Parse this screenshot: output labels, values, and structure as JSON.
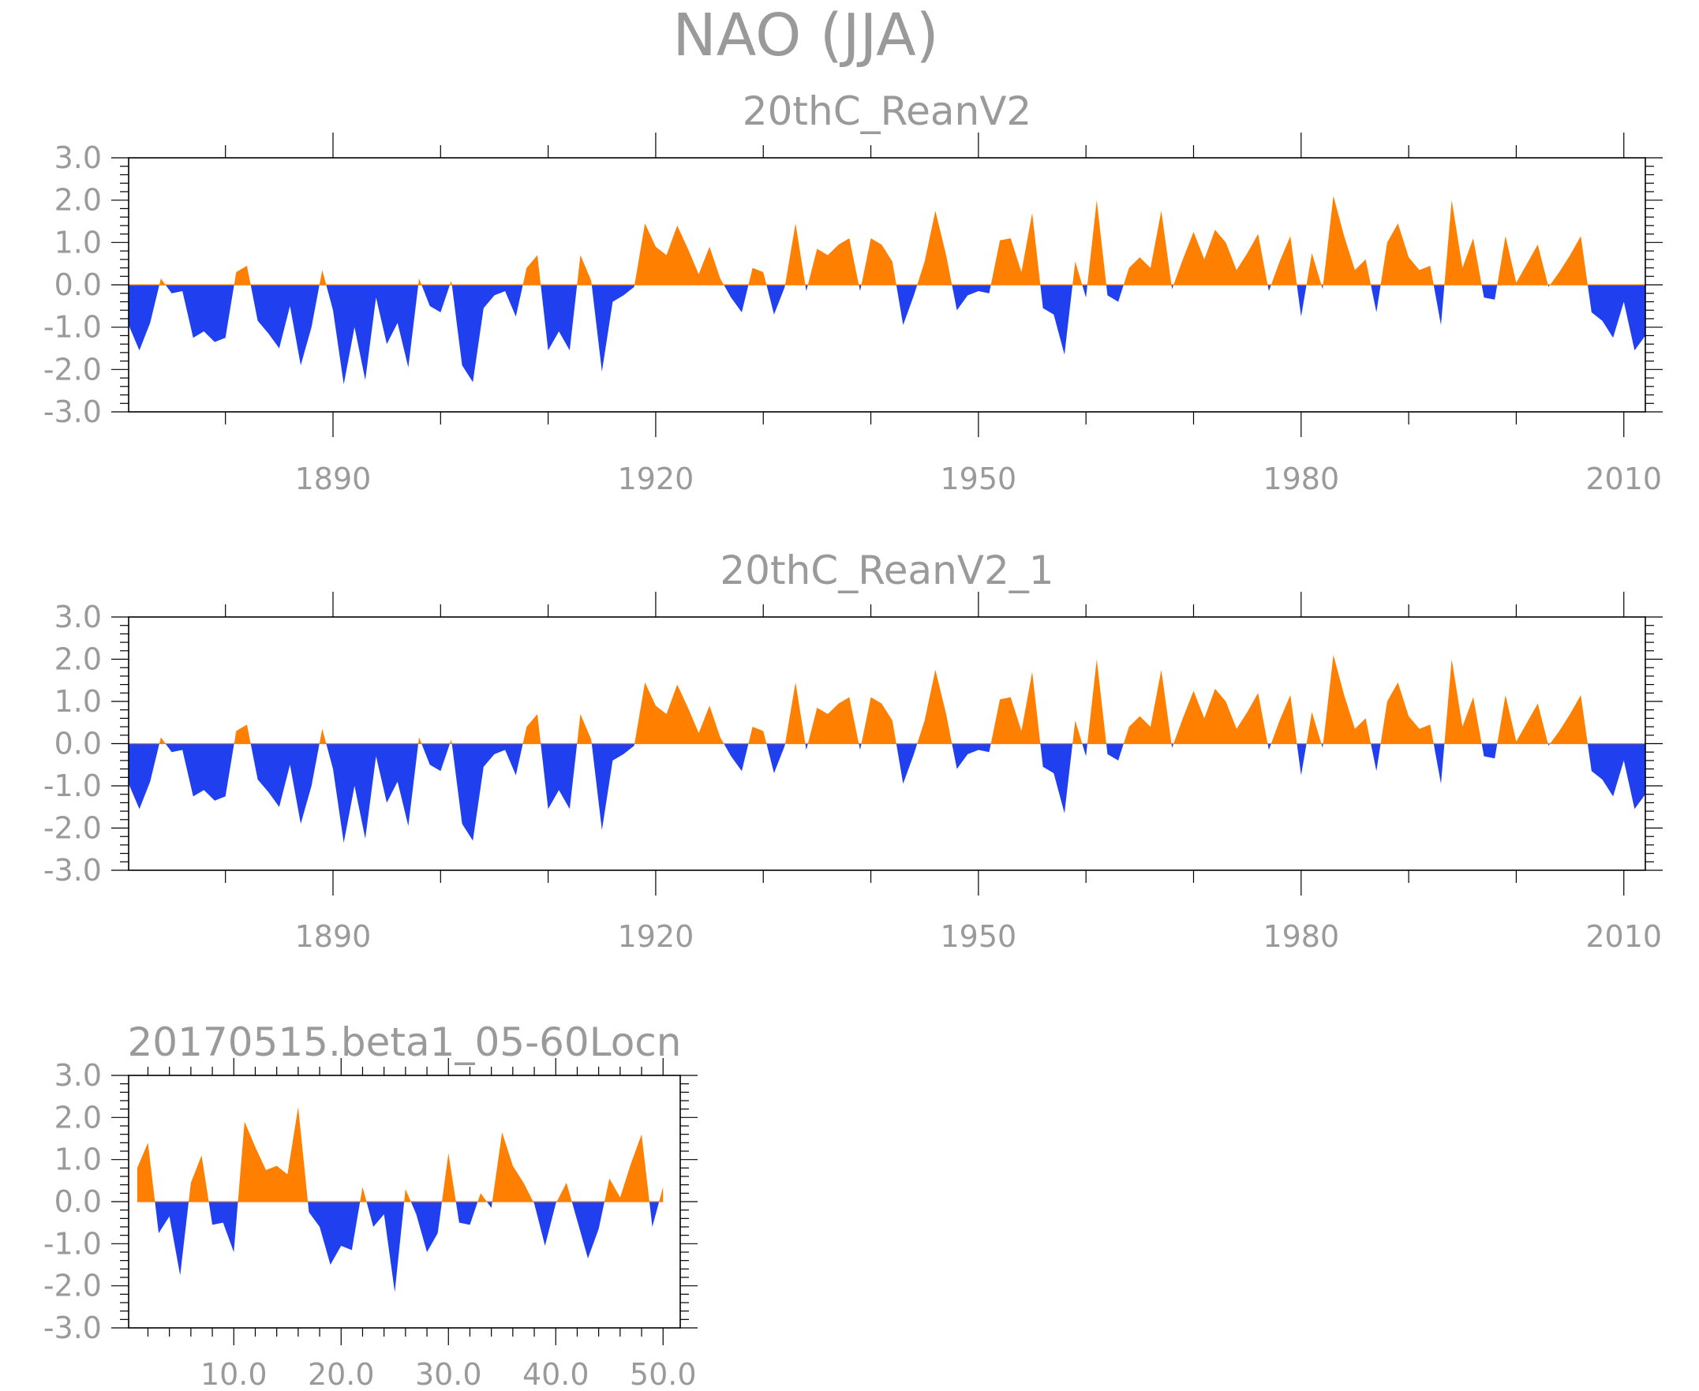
{
  "main_title": "NAO (JJA)",
  "colors": {
    "positive": "#ff8000",
    "negative": "#2040f0",
    "frame": "#000000",
    "text": "#9a9a9a"
  },
  "chart_data": [
    {
      "type": "area",
      "title": "20thC_ReanV2",
      "xlabel": "",
      "ylabel": "",
      "ylim": [
        -3,
        3
      ],
      "xlim": [
        1871,
        2012
      ],
      "yticks": [
        -3,
        -2,
        -1,
        0,
        1,
        2,
        3
      ],
      "ytick_labels": [
        "-3.0",
        "-2.0",
        "-1.0",
        "0.0",
        "1.0",
        "2.0",
        "3.0"
      ],
      "xticks": [
        1890,
        1920,
        1950,
        1980,
        2010
      ],
      "xtick_labels": [
        "1890",
        "1920",
        "1950",
        "1980",
        "2010"
      ],
      "grid": false,
      "series": [
        {
          "x_start": 1871,
          "x_end": 2012,
          "values": [
            -0.95,
            -1.55,
            -0.9,
            0.15,
            -0.2,
            -0.15,
            -1.25,
            -1.1,
            -1.35,
            -1.25,
            0.3,
            0.45,
            -0.85,
            -1.15,
            -1.5,
            -0.5,
            -1.9,
            -1.0,
            0.35,
            -0.6,
            -2.35,
            -1.0,
            -2.25,
            -0.3,
            -1.4,
            -0.9,
            -1.95,
            0.15,
            -0.5,
            -0.65,
            0.1,
            -1.9,
            -2.3,
            -0.55,
            -0.25,
            -0.15,
            -0.75,
            0.4,
            0.7,
            -1.55,
            -1.1,
            -1.55,
            0.7,
            0.1,
            -2.05,
            -0.4,
            -0.25,
            -0.05,
            1.45,
            0.9,
            0.7,
            1.4,
            0.85,
            0.25,
            0.9,
            0.15,
            -0.3,
            -0.65,
            0.4,
            0.3,
            -0.7,
            -0.05,
            1.45,
            -0.15,
            0.85,
            0.7,
            0.95,
            1.1,
            -0.15,
            1.1,
            0.95,
            0.55,
            -0.95,
            -0.25,
            0.55,
            1.75,
            0.7,
            -0.6,
            -0.25,
            -0.15,
            -0.2,
            1.05,
            1.1,
            0.3,
            1.7,
            -0.55,
            -0.7,
            -1.65,
            0.55,
            -0.3,
            2.0,
            -0.25,
            -0.4,
            0.4,
            0.65,
            0.4,
            1.75,
            -0.1,
            0.6,
            1.25,
            0.6,
            1.3,
            1.0,
            0.35,
            0.75,
            1.2,
            -0.15,
            0.55,
            1.15,
            -0.75,
            0.75,
            -0.1,
            2.1,
            1.15,
            0.35,
            0.6,
            -0.65,
            1.0,
            1.45,
            0.65,
            0.35,
            0.45,
            -0.95,
            2.0,
            0.4,
            1.1,
            -0.3,
            -0.35,
            1.15,
            0.05,
            0.5,
            0.95,
            -0.05,
            0.3,
            0.7,
            1.15,
            -0.65,
            -0.85,
            -1.25,
            -0.4,
            -1.55,
            -1.2
          ]
        }
      ]
    },
    {
      "type": "area",
      "title": "20thC_ReanV2_1",
      "xlabel": "",
      "ylabel": "",
      "ylim": [
        -3,
        3
      ],
      "xlim": [
        1871,
        2012
      ],
      "yticks": [
        -3,
        -2,
        -1,
        0,
        1,
        2,
        3
      ],
      "ytick_labels": [
        "-3.0",
        "-2.0",
        "-1.0",
        "0.0",
        "1.0",
        "2.0",
        "3.0"
      ],
      "xticks": [
        1890,
        1920,
        1950,
        1980,
        2010
      ],
      "xtick_labels": [
        "1890",
        "1920",
        "1950",
        "1980",
        "2010"
      ],
      "grid": false,
      "series": [
        {
          "x_start": 1871,
          "x_end": 2012,
          "values": [
            -0.95,
            -1.55,
            -0.9,
            0.15,
            -0.2,
            -0.15,
            -1.25,
            -1.1,
            -1.35,
            -1.25,
            0.3,
            0.45,
            -0.85,
            -1.15,
            -1.5,
            -0.5,
            -1.9,
            -1.0,
            0.35,
            -0.6,
            -2.35,
            -1.0,
            -2.25,
            -0.3,
            -1.4,
            -0.9,
            -1.95,
            0.15,
            -0.5,
            -0.65,
            0.1,
            -1.9,
            -2.3,
            -0.55,
            -0.25,
            -0.15,
            -0.75,
            0.4,
            0.7,
            -1.55,
            -1.1,
            -1.55,
            0.7,
            0.1,
            -2.05,
            -0.4,
            -0.25,
            -0.05,
            1.45,
            0.9,
            0.7,
            1.4,
            0.85,
            0.25,
            0.9,
            0.15,
            -0.3,
            -0.65,
            0.4,
            0.3,
            -0.7,
            -0.05,
            1.45,
            -0.15,
            0.85,
            0.7,
            0.95,
            1.1,
            -0.15,
            1.1,
            0.95,
            0.55,
            -0.95,
            -0.25,
            0.55,
            1.75,
            0.7,
            -0.6,
            -0.25,
            -0.15,
            -0.2,
            1.05,
            1.1,
            0.3,
            1.7,
            -0.55,
            -0.7,
            -1.65,
            0.55,
            -0.3,
            2.0,
            -0.25,
            -0.4,
            0.4,
            0.65,
            0.4,
            1.75,
            -0.1,
            0.6,
            1.25,
            0.6,
            1.3,
            1.0,
            0.35,
            0.75,
            1.2,
            -0.15,
            0.55,
            1.15,
            -0.75,
            0.75,
            -0.1,
            2.1,
            1.15,
            0.35,
            0.6,
            -0.65,
            1.0,
            1.45,
            0.65,
            0.35,
            0.45,
            -0.95,
            2.0,
            0.4,
            1.1,
            -0.3,
            -0.35,
            1.15,
            0.05,
            0.5,
            0.95,
            -0.05,
            0.3,
            0.7,
            1.15,
            -0.65,
            -0.85,
            -1.25,
            -0.4,
            -1.55,
            -1.2
          ]
        }
      ]
    },
    {
      "type": "area",
      "title": "20170515.beta1_05-60Locn",
      "xlabel": "",
      "ylabel": "",
      "ylim": [
        -3,
        3
      ],
      "xlim": [
        0.2,
        51.6
      ],
      "yticks": [
        -3,
        -2,
        -1,
        0,
        1,
        2,
        3
      ],
      "ytick_labels": [
        "-3.0",
        "-2.0",
        "-1.0",
        "0.0",
        "1.0",
        "2.0",
        "3.0"
      ],
      "xticks": [
        10,
        20,
        30,
        40,
        50
      ],
      "xtick_labels": [
        "10.0",
        "20.0",
        "30.0",
        "40.0",
        "50.0"
      ],
      "grid": false,
      "series": [
        {
          "x_start": 1,
          "x_end": 50,
          "values": [
            0.8,
            1.4,
            -0.75,
            -0.35,
            -1.75,
            0.45,
            1.1,
            -0.55,
            -0.5,
            -1.2,
            1.9,
            1.3,
            0.75,
            0.85,
            0.65,
            2.25,
            -0.25,
            -0.6,
            -1.5,
            -1.05,
            -1.15,
            0.35,
            -0.6,
            -0.3,
            -2.15,
            0.3,
            -0.3,
            -1.2,
            -0.75,
            1.15,
            -0.5,
            -0.55,
            0.2,
            -0.15,
            1.65,
            0.85,
            0.45,
            -0.05,
            -1.05,
            -0.05,
            0.45,
            -0.45,
            -1.35,
            -0.65,
            0.55,
            0.1,
            0.9,
            1.6,
            -0.6,
            0.35
          ]
        }
      ]
    }
  ]
}
